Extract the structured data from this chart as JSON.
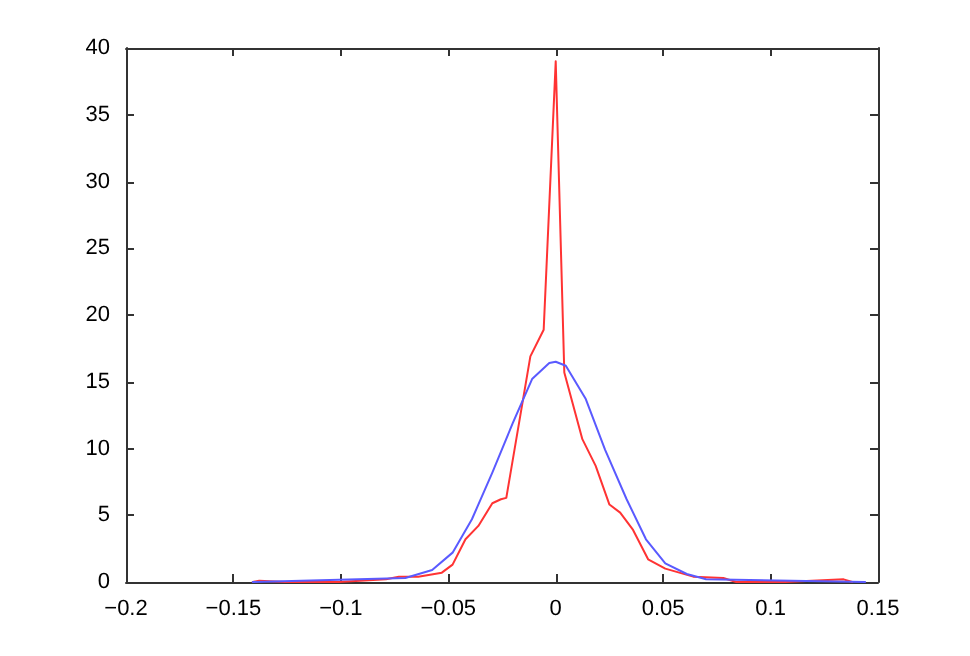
{
  "chart_data": {
    "type": "line",
    "xlim": [
      -0.2,
      0.15
    ],
    "xticks": [
      -0.2,
      -0.15,
      -0.1,
      -0.05,
      0,
      0.05,
      0.1,
      0.15
    ],
    "ylim": [
      0,
      40
    ],
    "yticks": [
      0,
      5,
      10,
      15,
      20,
      25,
      30,
      35,
      40
    ],
    "grid": false,
    "marker": "none",
    "line_style": "solid",
    "series": [
      {
        "color": "#ff3333",
        "x": [
          -0.141,
          -0.138,
          -0.126,
          -0.101,
          -0.079,
          -0.073,
          -0.064,
          -0.053,
          -0.048,
          -0.042,
          -0.036,
          -0.0295,
          -0.0255,
          -0.023,
          -0.0118,
          -0.0056,
          0,
          0.004,
          0.0124,
          0.0186,
          0.025,
          0.03,
          0.036,
          0.043,
          0.051,
          0.064,
          0.078,
          0.084,
          0.107,
          0.134,
          0.138
        ],
        "values": [
          0,
          0.1,
          0,
          0,
          0.2,
          0.4,
          0.4,
          0.7,
          1.3,
          3.2,
          4.2,
          5.9,
          6.2,
          6.3,
          16.9,
          18.9,
          39,
          15.7,
          10.7,
          8.7,
          5.8,
          5.2,
          3.9,
          1.7,
          1,
          0.4,
          0.3,
          0,
          0,
          0.2,
          0
        ]
      },
      {
        "color": "#5a5aff",
        "x": [
          -0.141,
          -0.07,
          -0.0575,
          -0.048,
          -0.039,
          -0.0295,
          -0.02,
          -0.011,
          -0.003,
          0,
          0.0047,
          0.014,
          0.023,
          0.033,
          0.042,
          0.051,
          0.061,
          0.07,
          0.144
        ],
        "values": [
          0,
          0.3,
          0.9,
          2.2,
          4.7,
          8.2,
          11.9,
          15.2,
          16.4,
          16.5,
          16.2,
          13.7,
          9.9,
          6.2,
          3.2,
          1.4,
          0.6,
          0.2,
          0
        ]
      }
    ]
  }
}
